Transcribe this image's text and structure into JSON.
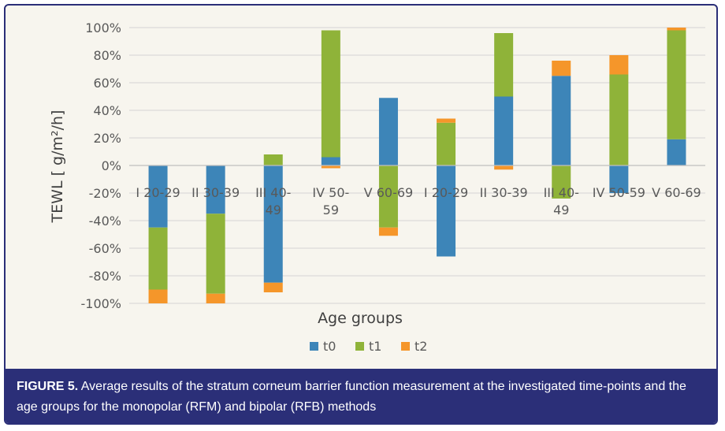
{
  "colors": {
    "t0": "#3d85b8",
    "t1": "#8fb339",
    "t2": "#f5962a",
    "grid": "#d4d4d4",
    "axis": "#595959"
  },
  "chart_data": {
    "type": "bar",
    "stacked": true,
    "title": "",
    "xlabel": "Age groups",
    "ylabel": "TEWL [ g/m²/h]",
    "ylim": [
      -100,
      100
    ],
    "y_ticks": [
      "100%",
      "80%",
      "60%",
      "40%",
      "20%",
      "0%",
      "-20%",
      "-40%",
      "-60%",
      "-80%",
      "-100%"
    ],
    "y_tick_values": [
      100,
      80,
      60,
      40,
      20,
      0,
      -20,
      -40,
      -60,
      -80,
      -100
    ],
    "categories": [
      [
        "I 20-29"
      ],
      [
        "II 30-39"
      ],
      [
        "III 40-",
        "49"
      ],
      [
        "IV 50-",
        "59"
      ],
      [
        "V 60-69"
      ],
      [
        "I 20-29"
      ],
      [
        "II 30-39"
      ],
      [
        "III 40-",
        "49"
      ],
      [
        "IV 50-59"
      ],
      [
        "V 60-69"
      ]
    ],
    "grid": true,
    "legend_position": "bottom",
    "series": [
      {
        "name": "t0",
        "values": [
          -45,
          -35,
          -85,
          6,
          49,
          -66,
          50,
          65,
          -20,
          19
        ]
      },
      {
        "name": "t1",
        "values": [
          -45,
          -58,
          8,
          92,
          -45,
          31,
          46,
          -24,
          66,
          79
        ]
      },
      {
        "name": "t2",
        "values": [
          -10,
          -7,
          -7,
          -2,
          -6,
          3,
          -3,
          11,
          14,
          2
        ]
      }
    ]
  },
  "caption": {
    "lead": "FIGURE 5.",
    "text": " Average results of the stratum corneum barrier function measurement at the investigated time-points and the age groups for the monopolar (RFM) and bipolar (RFB) methods"
  }
}
